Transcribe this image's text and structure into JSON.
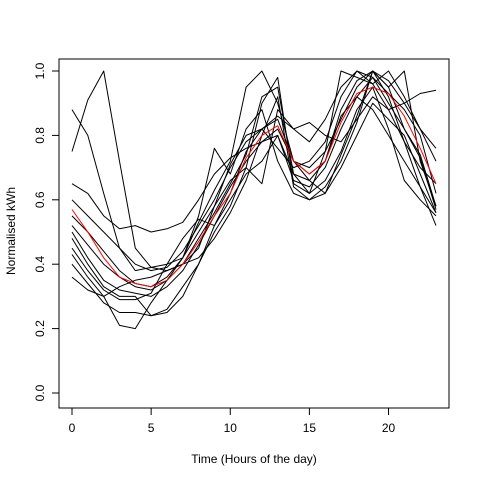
{
  "chart_data": {
    "type": "line",
    "title": "",
    "xlabel": "Time (Hours of the day)",
    "ylabel": "Normalised kWh",
    "xlim": [
      0,
      23
    ],
    "ylim": [
      0,
      1
    ],
    "x_ticks": [
      0,
      5,
      10,
      15,
      20
    ],
    "y_ticks": [
      0.0,
      0.2,
      0.4,
      0.6,
      0.8,
      1.0
    ],
    "y_tick_labels": [
      "0.0",
      "0.2",
      "0.4",
      "0.6",
      "0.8",
      "1.0"
    ],
    "grid": false,
    "legend": "none",
    "x": [
      0,
      1,
      2,
      3,
      4,
      5,
      6,
      7,
      8,
      9,
      10,
      11,
      12,
      13,
      14,
      15,
      16,
      17,
      18,
      19,
      20,
      21,
      22,
      23
    ],
    "series": [
      {
        "color": "#000000",
        "values": [
          0.88,
          0.8,
          0.62,
          0.45,
          0.38,
          0.39,
          0.4,
          0.42,
          0.53,
          0.63,
          0.72,
          0.95,
          1.0,
          0.9,
          0.72,
          0.7,
          0.75,
          0.85,
          0.95,
          1.0,
          0.97,
          0.9,
          0.82,
          0.76
        ]
      },
      {
        "color": "#000000",
        "values": [
          0.75,
          0.91,
          1.0,
          0.72,
          0.45,
          0.39,
          0.38,
          0.4,
          0.45,
          0.58,
          0.71,
          0.8,
          0.82,
          0.85,
          0.72,
          0.68,
          0.72,
          0.88,
          0.97,
          1.0,
          0.95,
          0.82,
          0.74,
          0.58
        ]
      },
      {
        "color": "#000000",
        "values": [
          0.65,
          0.62,
          0.55,
          0.51,
          0.52,
          0.5,
          0.51,
          0.53,
          0.6,
          0.68,
          0.73,
          0.76,
          0.78,
          0.8,
          0.66,
          0.64,
          0.7,
          0.82,
          0.92,
          0.98,
          0.93,
          0.88,
          0.8,
          0.62
        ]
      },
      {
        "color": "#000000",
        "values": [
          0.6,
          0.55,
          0.5,
          0.45,
          0.4,
          0.38,
          0.39,
          0.44,
          0.52,
          0.6,
          0.7,
          0.78,
          0.82,
          0.76,
          0.7,
          0.72,
          0.78,
          0.92,
          1.0,
          0.98,
          0.9,
          0.82,
          0.73,
          0.57
        ]
      },
      {
        "color": "#000000",
        "values": [
          0.55,
          0.5,
          0.44,
          0.38,
          0.34,
          0.33,
          0.36,
          0.42,
          0.5,
          0.58,
          0.66,
          0.7,
          0.65,
          0.88,
          0.82,
          0.78,
          0.85,
          0.95,
          1.0,
          0.96,
          1.0,
          0.92,
          0.82,
          0.72
        ]
      },
      {
        "color": "#000000",
        "values": [
          0.52,
          0.46,
          0.4,
          0.36,
          0.33,
          0.32,
          0.35,
          0.4,
          0.48,
          0.56,
          0.65,
          0.74,
          0.92,
          0.95,
          0.68,
          0.62,
          0.75,
          1.0,
          0.98,
          0.96,
          0.88,
          0.78,
          0.7,
          0.65
        ]
      },
      {
        "color": "#000000",
        "values": [
          0.5,
          0.42,
          0.35,
          0.32,
          0.31,
          0.3,
          0.33,
          0.38,
          0.46,
          0.55,
          0.64,
          0.72,
          0.78,
          0.82,
          0.72,
          0.66,
          0.72,
          0.86,
          0.92,
          0.88,
          0.8,
          0.72,
          0.64,
          0.56
        ]
      },
      {
        "color": "#000000",
        "values": [
          0.48,
          0.4,
          0.33,
          0.3,
          0.3,
          0.24,
          0.25,
          0.3,
          0.4,
          0.52,
          0.62,
          0.75,
          0.82,
          0.86,
          0.82,
          0.84,
          0.8,
          0.78,
          0.85,
          0.92,
          0.88,
          0.9,
          0.93,
          0.94
        ]
      },
      {
        "color": "#000000",
        "values": [
          0.45,
          0.38,
          0.32,
          0.29,
          0.29,
          0.31,
          0.4,
          0.48,
          0.54,
          0.52,
          0.6,
          0.68,
          0.72,
          0.8,
          0.68,
          0.66,
          0.62,
          0.7,
          0.8,
          0.9,
          0.85,
          0.8,
          0.68,
          0.56
        ]
      },
      {
        "color": "#000000",
        "values": [
          0.43,
          0.36,
          0.3,
          0.21,
          0.2,
          0.28,
          0.35,
          0.42,
          0.55,
          0.76,
          0.68,
          0.82,
          0.88,
          0.72,
          0.62,
          0.6,
          0.62,
          0.74,
          0.86,
          1.0,
          0.92,
          0.78,
          0.64,
          0.52
        ]
      },
      {
        "color": "#000000",
        "values": [
          0.4,
          0.34,
          0.28,
          0.25,
          0.25,
          0.24,
          0.26,
          0.33,
          0.4,
          0.5,
          0.58,
          0.7,
          0.9,
          0.98,
          0.65,
          0.62,
          0.66,
          0.75,
          0.88,
          0.95,
          0.82,
          0.66,
          0.6,
          0.55
        ]
      },
      {
        "color": "#000000",
        "values": [
          0.36,
          0.32,
          0.3,
          0.33,
          0.35,
          0.36,
          0.38,
          0.4,
          0.42,
          0.48,
          0.56,
          0.66,
          0.8,
          0.92,
          0.64,
          0.6,
          0.64,
          0.72,
          0.84,
          1.0,
          0.95,
          1.0,
          0.72,
          0.58
        ]
      },
      {
        "color": "#ff0000",
        "values": [
          0.57,
          0.5,
          0.42,
          0.36,
          0.34,
          0.33,
          0.35,
          0.4,
          0.47,
          0.55,
          0.62,
          0.73,
          0.8,
          0.83,
          0.72,
          0.68,
          0.72,
          0.84,
          0.93,
          0.95,
          0.93,
          0.86,
          0.76,
          0.65
        ]
      }
    ]
  }
}
